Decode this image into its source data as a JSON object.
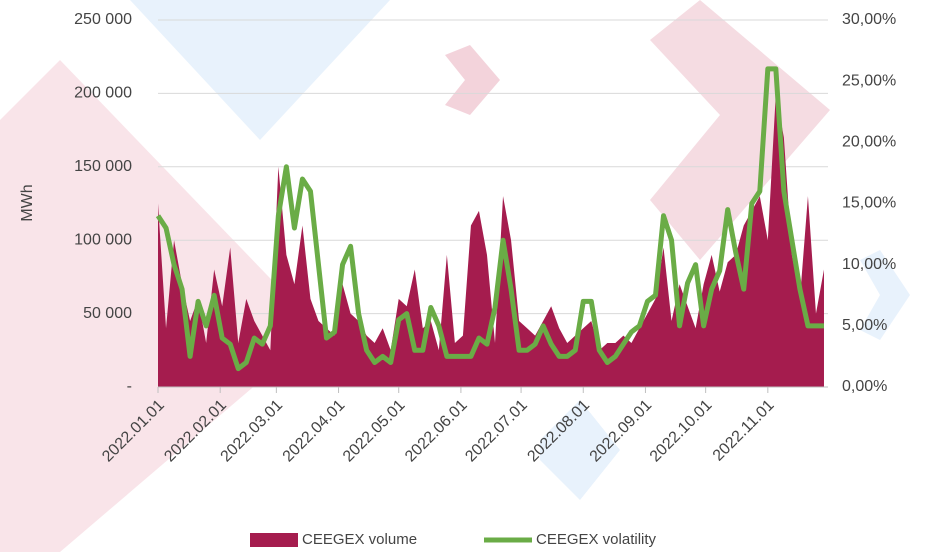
{
  "chart_data": {
    "type": "area-line",
    "y_label": "MWh",
    "x": [
      "2022.01.01",
      "2022.01.05",
      "2022.01.09",
      "2022.01.13",
      "2022.01.17",
      "2022.01.21",
      "2022.01.25",
      "2022.01.29",
      "2022.02.02",
      "2022.02.06",
      "2022.02.10",
      "2022.02.14",
      "2022.02.18",
      "2022.02.22",
      "2022.02.26",
      "2022.03.02",
      "2022.03.06",
      "2022.03.10",
      "2022.03.14",
      "2022.03.18",
      "2022.03.22",
      "2022.03.26",
      "2022.03.30",
      "2022.04.03",
      "2022.04.07",
      "2022.04.11",
      "2022.04.15",
      "2022.04.19",
      "2022.04.23",
      "2022.04.27",
      "2022.05.01",
      "2022.05.05",
      "2022.05.09",
      "2022.05.13",
      "2022.05.17",
      "2022.05.21",
      "2022.05.25",
      "2022.05.29",
      "2022.06.02",
      "2022.06.06",
      "2022.06.10",
      "2022.06.14",
      "2022.06.18",
      "2022.06.22",
      "2022.06.26",
      "2022.06.30",
      "2022.07.04",
      "2022.07.08",
      "2022.07.12",
      "2022.07.16",
      "2022.07.20",
      "2022.07.24",
      "2022.07.28",
      "2022.08.01",
      "2022.08.05",
      "2022.08.09",
      "2022.08.13",
      "2022.08.17",
      "2022.08.21",
      "2022.08.25",
      "2022.08.29",
      "2022.09.02",
      "2022.09.06",
      "2022.09.10",
      "2022.09.14",
      "2022.09.18",
      "2022.09.22",
      "2022.09.26",
      "2022.09.30",
      "2022.10.04",
      "2022.10.08",
      "2022.10.12",
      "2022.10.16",
      "2022.10.20",
      "2022.10.24",
      "2022.10.28",
      "2022.11.01",
      "2022.11.05",
      "2022.11.09",
      "2022.11.13",
      "2022.11.17",
      "2022.11.21",
      "2022.11.25",
      "2022.11.29"
    ],
    "series": [
      {
        "name": "CEEGEX volume",
        "color": "#a51c4e",
        "kind": "area",
        "values": [
          125000,
          40000,
          100000,
          70000,
          45000,
          60000,
          30000,
          80000,
          55000,
          95000,
          30000,
          60000,
          45000,
          35000,
          25000,
          150000,
          90000,
          70000,
          110000,
          60000,
          45000,
          40000,
          35000,
          70000,
          50000,
          45000,
          35000,
          30000,
          40000,
          25000,
          60000,
          55000,
          80000,
          40000,
          45000,
          25000,
          90000,
          30000,
          35000,
          110000,
          120000,
          90000,
          30000,
          130000,
          100000,
          45000,
          40000,
          35000,
          45000,
          55000,
          40000,
          30000,
          35000,
          40000,
          45000,
          25000,
          30000,
          30000,
          35000,
          30000,
          40000,
          50000,
          60000,
          95000,
          45000,
          70000,
          55000,
          40000,
          70000,
          90000,
          65000,
          85000,
          90000,
          110000,
          120000,
          130000,
          100000,
          200000,
          170000,
          90000,
          60000,
          130000,
          50000,
          80000
        ]
      },
      {
        "name": "CEEGEX volatility",
        "color": "#6aac46",
        "kind": "line",
        "axis": "y2",
        "values": [
          14,
          13,
          10,
          8,
          2.5,
          7,
          5,
          7.5,
          4,
          3.5,
          1.5,
          2,
          4,
          3.5,
          5,
          14,
          18,
          13,
          17,
          16,
          10,
          4,
          4.5,
          10,
          11.5,
          6,
          3,
          2,
          2.5,
          2,
          5.5,
          6,
          3,
          3,
          6.5,
          5,
          2.5,
          2.5,
          2.5,
          2.5,
          4,
          3.5,
          6.5,
          12,
          8,
          3,
          3,
          3.5,
          5,
          3.5,
          2.5,
          2.5,
          3,
          7,
          7,
          3,
          2,
          2.5,
          3.5,
          4.5,
          5,
          7,
          7.5,
          14,
          12,
          5,
          8.5,
          10,
          5,
          8,
          9.5,
          14.5,
          11,
          8,
          15,
          16,
          26,
          26,
          16,
          12,
          8,
          5,
          5,
          5
        ]
      }
    ],
    "xlim": [
      "2022.01.01",
      "2022.12.01"
    ],
    "xticks": [
      "2022.01.01",
      "2022.02.01",
      "2022.03.01",
      "2022.04.01",
      "2022.05.01",
      "2022.06.01",
      "2022.07.01",
      "2022.08.01",
      "2022.09.01",
      "2022.10.01",
      "2022.11.01"
    ],
    "ylim": [
      0,
      250000
    ],
    "yticks": [
      {
        "value": 0,
        "label": "-"
      },
      {
        "value": 50000,
        "label": "50 000"
      },
      {
        "value": 100000,
        "label": "100 000"
      },
      {
        "value": 150000,
        "label": "150 000"
      },
      {
        "value": 200000,
        "label": "200 000"
      },
      {
        "value": 250000,
        "label": "250 000"
      }
    ],
    "y2lim": [
      0,
      30
    ],
    "y2ticks": [
      {
        "value": 0,
        "label": "0,00%"
      },
      {
        "value": 5,
        "label": "5,00%"
      },
      {
        "value": 10,
        "label": "10,00%"
      },
      {
        "value": 15,
        "label": "15,00%"
      },
      {
        "value": 20,
        "label": "20,00%"
      },
      {
        "value": 25,
        "label": "25,00%"
      },
      {
        "value": 30,
        "label": "30,00%"
      }
    ],
    "grid": true
  }
}
